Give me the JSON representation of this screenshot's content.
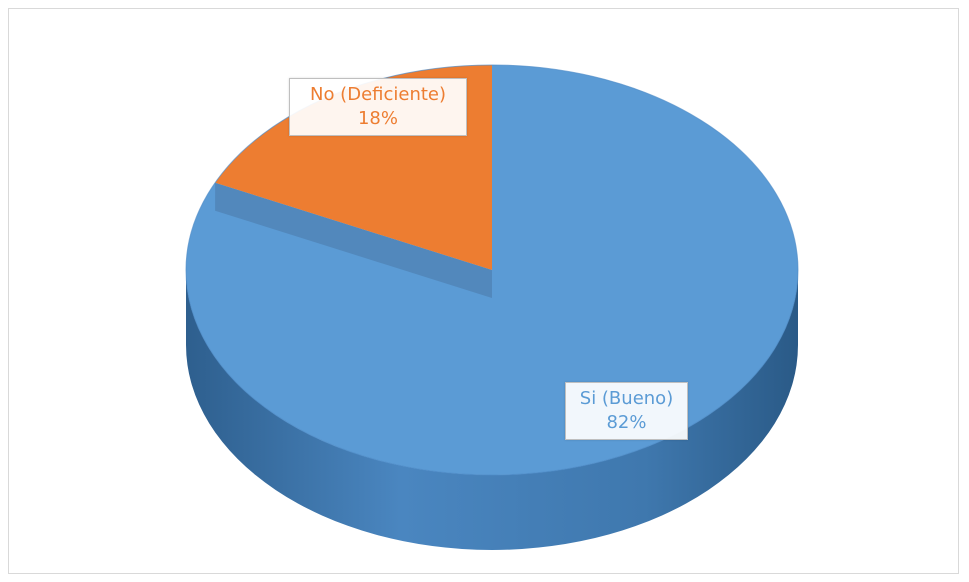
{
  "chart_data": {
    "type": "pie",
    "title": "",
    "slices": [
      {
        "name": "Si (Bueno)",
        "value": 82,
        "label": "82%",
        "color": "#5b9bd5"
      },
      {
        "name": "No (Deficiente)",
        "value": 18,
        "label": "18%",
        "color": "#ed7d31"
      }
    ],
    "style": "3d",
    "legend": "none"
  }
}
